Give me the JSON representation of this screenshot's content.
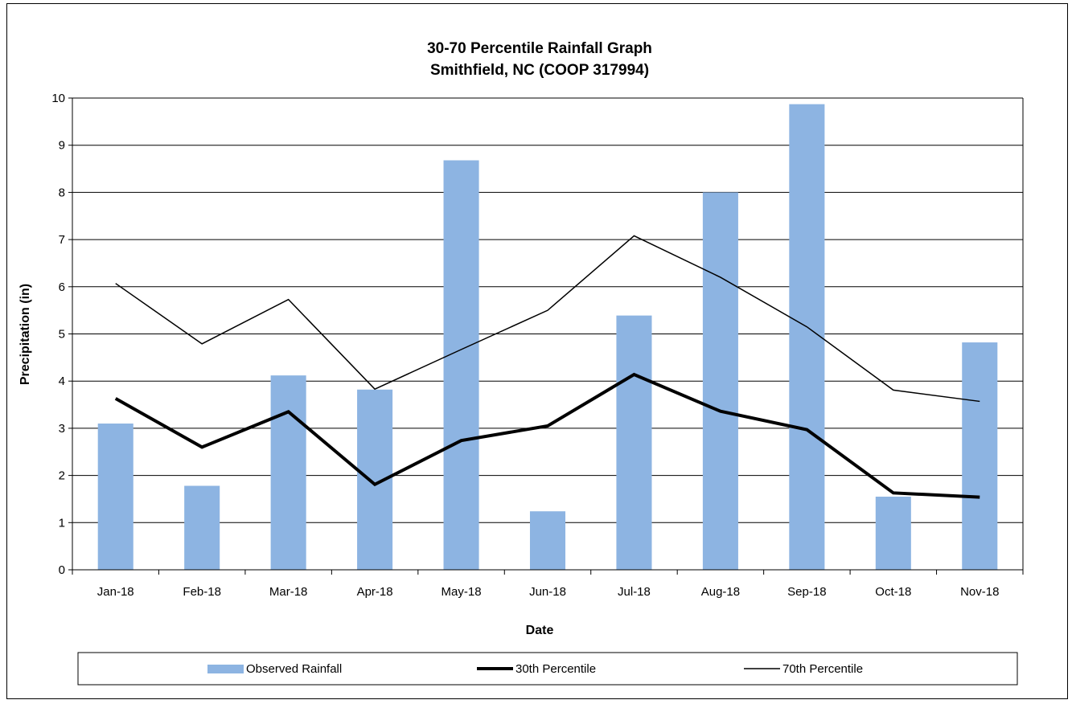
{
  "chart_data": {
    "type": "bar",
    "title": "30-70 Percentile Rainfall Graph",
    "subtitle": "Smithfield, NC (COOP 317994)",
    "xlabel": "Date",
    "ylabel": "Precipitation (in)",
    "ylim": [
      0,
      10
    ],
    "yticks": [
      "0",
      "1",
      "2",
      "3",
      "4",
      "5",
      "6",
      "7",
      "8",
      "9",
      "10"
    ],
    "grid": true,
    "legend_position": "bottom",
    "categories": [
      "Jan-18",
      "Feb-18",
      "Mar-18",
      "Apr-18",
      "May-18",
      "Jun-18",
      "Jul-18",
      "Aug-18",
      "Sep-18",
      "Oct-18",
      "Nov-18"
    ],
    "series": [
      {
        "name": "Observed Rainfall",
        "type": "bar",
        "color": "#8db4e2",
        "values": [
          3.1,
          1.78,
          4.12,
          3.82,
          8.68,
          1.24,
          5.39,
          8.0,
          9.87,
          1.55,
          4.82
        ]
      },
      {
        "name": "30th Percentile",
        "type": "line",
        "color": "#000000",
        "values": [
          3.63,
          2.6,
          3.35,
          1.81,
          2.74,
          3.05,
          4.14,
          3.36,
          2.97,
          1.63,
          1.54
        ]
      },
      {
        "name": "70th Percentile",
        "type": "line",
        "color": "#000000",
        "values": [
          6.07,
          4.79,
          5.73,
          3.83,
          4.67,
          5.5,
          7.08,
          6.2,
          5.15,
          3.81,
          3.57
        ]
      }
    ]
  }
}
